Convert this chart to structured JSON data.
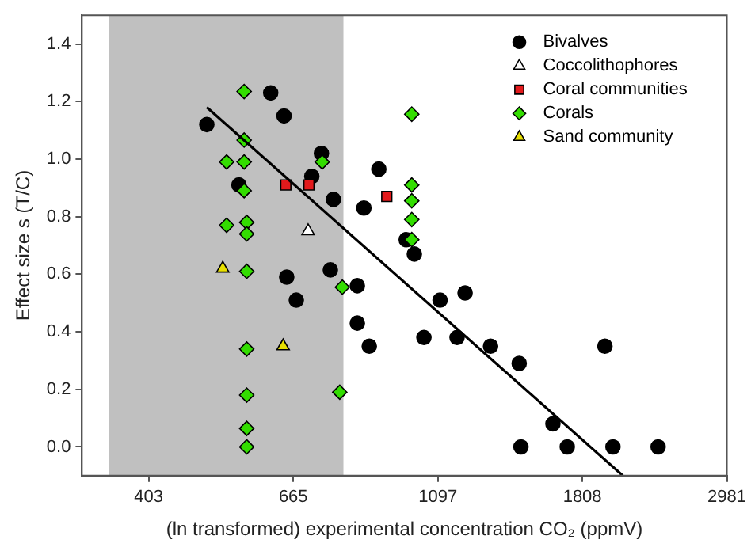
{
  "chart_data": {
    "type": "scatter",
    "xlabel": "(ln transformed) experimental concentration CO₂ (ppmV)",
    "ylabel": "Effect size s (T/C)",
    "log": "x",
    "xlim": [
      320,
      2981
    ],
    "xticks": [
      403,
      665,
      1097,
      1808,
      2981
    ],
    "ylim": [
      -0.1,
      1.5
    ],
    "yticks": [
      {
        "value": 0,
        "label": "0.0"
      },
      0.2,
      0.4,
      0.6,
      0.8,
      {
        "value": 1,
        "label": "1.0"
      },
      1.2,
      1.4
    ],
    "grid": false,
    "legend": "top right",
    "bands": [
      {
        "axis": "x",
        "from": 351,
        "to": 791,
        "color": "#c0c0c0"
      }
    ],
    "series": [
      {
        "name": "Bivalves",
        "color": "#000000",
        "marker": "circle",
        "x": [
          615,
          644,
          493,
          733,
          709,
          551,
          764,
          894,
          849,
          983,
          1011,
          650,
          756,
          672,
          830,
          830,
          865,
          1045,
          1105,
          1205,
          1172,
          1316,
          1453,
          1955,
          1633,
          1462,
          1716,
          2010,
          2350
        ],
        "values": [
          1.23,
          1.15,
          1.12,
          1.02,
          0.94,
          0.91,
          0.86,
          0.965,
          0.83,
          0.72,
          0.67,
          0.59,
          0.615,
          0.51,
          0.56,
          0.43,
          0.35,
          0.38,
          0.51,
          0.535,
          0.38,
          0.35,
          0.29,
          0.35,
          0.08,
          0,
          0,
          0,
          0
        ]
      },
      {
        "name": "Coccolithophores",
        "color": "#ffffff",
        "marker": "triangle",
        "x": [
          700
        ],
        "values": [
          0.75
        ]
      },
      {
        "name": "Coral communities",
        "color": "#e31a1c",
        "marker": "square",
        "x": [
          648,
          702,
          919
        ],
        "values": [
          0.91,
          0.91,
          0.87
        ]
      },
      {
        "name": "Corals",
        "color": "#33dd00",
        "marker": "diamond",
        "x": [
          561,
          561,
          528,
          561,
          561,
          735,
          528,
          566,
          566,
          1002,
          1002,
          1002,
          1002,
          1002,
          566,
          788,
          566,
          781,
          566,
          566,
          566
        ],
        "values": [
          1.235,
          1.066,
          0.99,
          0.99,
          0.89,
          0.99,
          0.77,
          0.78,
          0.74,
          1.156,
          0.91,
          0.855,
          0.79,
          0.72,
          0.61,
          0.555,
          0.34,
          0.19,
          0.18,
          0.064,
          0
        ]
      },
      {
        "name": "Sand community",
        "color": "#e8e000",
        "marker": "triangle",
        "x": [
          521,
          642
        ],
        "values": [
          0.62,
          0.35
        ]
      },
      {
        "type": "line",
        "color": "#000000",
        "marker": "none",
        "x": [
          493,
          2080
        ],
        "values": [
          1.18,
          -0.1
        ]
      }
    ]
  }
}
